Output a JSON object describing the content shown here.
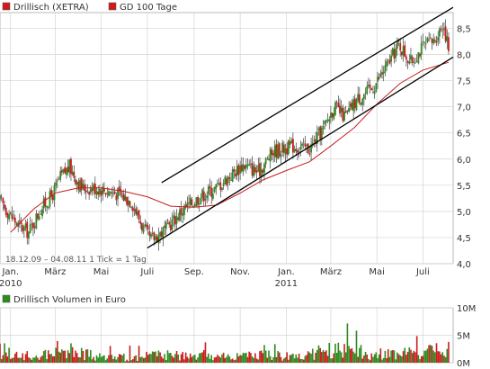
{
  "chart_data": [
    {
      "type": "candlestick",
      "legend": [
        {
          "label": "Drillisch (XETRA)",
          "color": "#d11b1b"
        },
        {
          "label": "GD 100 Tage",
          "color": "#d11b1b"
        }
      ],
      "footer_text": "18.12.09 – 04.08.11   1 Tick = 1 Tag",
      "x_ticks": [
        "Jan.",
        "März",
        "Mai",
        "Juli",
        "Sep.",
        "Nov.",
        "Jan.",
        "März",
        "Mai",
        "Juli"
      ],
      "x_years": [
        "2010",
        "2011"
      ],
      "y_ticks": [
        "4,0",
        "4,5",
        "5,0",
        "5,5",
        "6,0",
        "6,5",
        "7,0",
        "7,5",
        "8,0",
        "8,5"
      ],
      "ylim": [
        4.0,
        8.8
      ],
      "grid": true,
      "colors": {
        "up": "#2e8b1e",
        "down": "#c81e1e",
        "wick": "#222222",
        "ma": "#c81e1e",
        "trend": "#000000",
        "grid": "#d4d4d4"
      },
      "price_path": [
        {
          "date": "2009-12-18",
          "value": 5.2
        },
        {
          "date": "2010-01-10",
          "value": 4.75
        },
        {
          "date": "2010-01-25",
          "value": 4.6
        },
        {
          "date": "2010-02-10",
          "value": 5.05
        },
        {
          "date": "2010-02-25",
          "value": 5.3
        },
        {
          "date": "2010-03-08",
          "value": 5.65
        },
        {
          "date": "2010-03-20",
          "value": 5.85
        },
        {
          "date": "2010-04-05",
          "value": 5.45
        },
        {
          "date": "2010-04-25",
          "value": 5.45
        },
        {
          "date": "2010-05-20",
          "value": 5.35
        },
        {
          "date": "2010-06-10",
          "value": 5.2
        },
        {
          "date": "2010-06-25",
          "value": 4.7
        },
        {
          "date": "2010-07-05",
          "value": 4.45
        },
        {
          "date": "2010-07-25",
          "value": 4.65
        },
        {
          "date": "2010-08-15",
          "value": 5.0
        },
        {
          "date": "2010-09-10",
          "value": 5.3
        },
        {
          "date": "2010-09-30",
          "value": 5.45
        },
        {
          "date": "2010-10-20",
          "value": 5.7
        },
        {
          "date": "2010-11-05",
          "value": 5.9
        },
        {
          "date": "2010-11-25",
          "value": 5.75
        },
        {
          "date": "2010-12-15",
          "value": 6.15
        },
        {
          "date": "2011-01-10",
          "value": 6.25
        },
        {
          "date": "2011-02-01",
          "value": 6.2
        },
        {
          "date": "2011-02-20",
          "value": 6.6
        },
        {
          "date": "2011-03-05",
          "value": 7.0
        },
        {
          "date": "2011-03-20",
          "value": 6.8
        },
        {
          "date": "2011-04-05",
          "value": 7.15
        },
        {
          "date": "2011-04-25",
          "value": 7.35
        },
        {
          "date": "2011-05-15",
          "value": 7.8
        },
        {
          "date": "2011-05-30",
          "value": 8.2
        },
        {
          "date": "2011-06-15",
          "value": 7.85
        },
        {
          "date": "2011-07-01",
          "value": 8.15
        },
        {
          "date": "2011-07-15",
          "value": 8.25
        },
        {
          "date": "2011-07-28",
          "value": 8.6
        },
        {
          "date": "2011-08-04",
          "value": 8.1
        }
      ],
      "moving_average_100": [
        {
          "date": "2010-01-01",
          "value": 4.6
        },
        {
          "date": "2010-02-01",
          "value": 5.05
        },
        {
          "date": "2010-03-01",
          "value": 5.35
        },
        {
          "date": "2010-04-01",
          "value": 5.45
        },
        {
          "date": "2010-05-01",
          "value": 5.45
        },
        {
          "date": "2010-06-01",
          "value": 5.38
        },
        {
          "date": "2010-07-01",
          "value": 5.28
        },
        {
          "date": "2010-08-01",
          "value": 5.1
        },
        {
          "date": "2010-09-01",
          "value": 5.08
        },
        {
          "date": "2010-10-01",
          "value": 5.12
        },
        {
          "date": "2010-11-01",
          "value": 5.35
        },
        {
          "date": "2010-12-01",
          "value": 5.6
        },
        {
          "date": "2011-01-01",
          "value": 5.78
        },
        {
          "date": "2011-02-01",
          "value": 5.95
        },
        {
          "date": "2011-03-01",
          "value": 6.25
        },
        {
          "date": "2011-04-01",
          "value": 6.6
        },
        {
          "date": "2011-05-01",
          "value": 7.05
        },
        {
          "date": "2011-06-01",
          "value": 7.45
        },
        {
          "date": "2011-07-01",
          "value": 7.7
        },
        {
          "date": "2011-08-04",
          "value": 7.85
        }
      ],
      "trend_channel": [
        {
          "start": {
            "date": "2010-07-01",
            "value": 4.3
          },
          "end": {
            "date": "2011-08-10",
            "value": 7.95
          }
        },
        {
          "start": {
            "date": "2010-07-20",
            "value": 5.55
          },
          "end": {
            "date": "2011-08-10",
            "value": 8.9
          }
        }
      ]
    },
    {
      "type": "bar",
      "legend": [
        {
          "label": "Drillisch Volumen in Euro",
          "color": "#2e8b1e"
        }
      ],
      "y_ticks": [
        "0M",
        "5M",
        "10M"
      ],
      "ylim": [
        0,
        10
      ],
      "unit": "M Euro",
      "volume_profile": [
        {
          "date": "2010-01-01",
          "value": 1.3
        },
        {
          "date": "2010-02-15",
          "value": 1.6
        },
        {
          "date": "2010-03-20",
          "value": 2.4
        },
        {
          "date": "2010-05-01",
          "value": 1.2
        },
        {
          "date": "2010-06-15",
          "value": 1.0
        },
        {
          "date": "2010-07-15",
          "value": 1.6
        },
        {
          "date": "2010-09-01",
          "value": 1.3
        },
        {
          "date": "2010-10-15",
          "value": 1.4
        },
        {
          "date": "2010-12-01",
          "value": 1.5
        },
        {
          "date": "2011-01-15",
          "value": 1.4
        },
        {
          "date": "2011-03-01",
          "value": 2.6
        },
        {
          "date": "2011-04-15",
          "value": 1.6
        },
        {
          "date": "2011-06-01",
          "value": 1.9
        },
        {
          "date": "2011-08-01",
          "value": 2.6
        }
      ]
    }
  ]
}
